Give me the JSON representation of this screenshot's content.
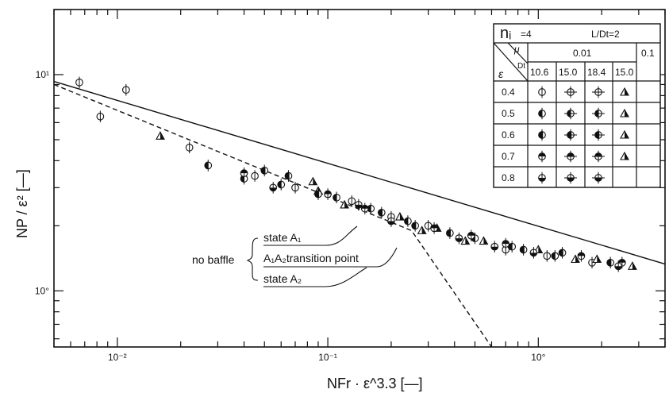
{
  "chart_data": {
    "type": "scatter",
    "title": "",
    "xlabel": "NFr · ε^3.3   [—]",
    "ylabel": "NP / ε²   [—]",
    "xscale": "log",
    "yscale": "log",
    "xlim": [
      0.005,
      4.0
    ],
    "ylim": [
      0.55,
      20
    ],
    "x_ticklabels": [
      "10⁻²",
      "10⁻¹",
      "10°"
    ],
    "y_ticklabels": [
      "10¹",
      "10°"
    ],
    "grid": false,
    "legend": {
      "position": "top-right",
      "n_label": "nᵢ",
      "n_value": "=4",
      "ldt": "L/Dt=2",
      "mu_symbol": "μ",
      "dt_symbol": "Dt",
      "eps_symbol": "ε",
      "mu_groups": [
        "0.01",
        "0.1"
      ],
      "dt_values": [
        "10.6",
        "15.0",
        "18.4",
        "15.0"
      ],
      "rows": [
        "0.4",
        "0.5",
        "0.6",
        "0.7",
        "0.8"
      ]
    },
    "annotations": {
      "no_baffle": "no baffle",
      "state_a1": "state A₁",
      "transition": "A₁A₂transition point",
      "state_a2": "state A₂"
    },
    "series": [
      {
        "eps": "0.4",
        "points": [
          [
            0.0066,
            9.2
          ],
          [
            0.0083,
            6.4
          ],
          [
            0.011,
            8.5
          ],
          [
            0.016,
            5.2
          ],
          [
            0.022,
            4.6
          ],
          [
            0.045,
            3.4
          ],
          [
            0.07,
            3.0
          ],
          [
            0.09,
            2.9
          ],
          [
            0.13,
            2.6
          ],
          [
            0.2,
            2.2
          ],
          [
            0.3,
            2.0
          ],
          [
            0.45,
            1.7
          ],
          [
            0.7,
            1.55
          ],
          [
            1.1,
            1.45
          ],
          [
            1.8,
            1.35
          ],
          [
            2.8,
            1.3
          ]
        ]
      },
      {
        "eps": "0.5",
        "points": [
          [
            0.027,
            3.8
          ],
          [
            0.04,
            3.3
          ],
          [
            0.06,
            3.1
          ],
          [
            0.085,
            3.2
          ],
          [
            0.11,
            2.7
          ],
          [
            0.16,
            2.4
          ],
          [
            0.24,
            2.1
          ],
          [
            0.33,
            1.95
          ],
          [
            0.5,
            1.75
          ],
          [
            0.75,
            1.6
          ],
          [
            1.2,
            1.45
          ],
          [
            1.9,
            1.4
          ]
        ]
      },
      {
        "eps": "0.6",
        "points": [
          [
            0.05,
            3.6
          ],
          [
            0.065,
            3.4
          ],
          [
            0.09,
            2.8
          ],
          [
            0.12,
            2.5
          ],
          [
            0.18,
            2.3
          ],
          [
            0.26,
            2.0
          ],
          [
            0.38,
            1.85
          ],
          [
            0.55,
            1.7
          ],
          [
            0.85,
            1.55
          ],
          [
            1.3,
            1.5
          ],
          [
            2.2,
            1.35
          ]
        ]
      },
      {
        "eps": "0.7",
        "points": [
          [
            0.04,
            3.5
          ],
          [
            0.1,
            2.8
          ],
          [
            0.15,
            2.4
          ],
          [
            0.22,
            2.2
          ],
          [
            0.32,
            1.95
          ],
          [
            0.48,
            1.8
          ],
          [
            0.7,
            1.65
          ],
          [
            1.0,
            1.55
          ],
          [
            1.6,
            1.45
          ],
          [
            2.5,
            1.35
          ]
        ]
      },
      {
        "eps": "0.8",
        "points": [
          [
            0.055,
            3.0
          ],
          [
            0.14,
            2.5
          ],
          [
            0.2,
            2.1
          ],
          [
            0.28,
            1.9
          ],
          [
            0.42,
            1.75
          ],
          [
            0.62,
            1.6
          ],
          [
            0.95,
            1.5
          ],
          [
            1.5,
            1.4
          ],
          [
            2.4,
            1.3
          ]
        ]
      }
    ],
    "lines": {
      "state_a1": [
        [
          0.005,
          9.3
        ],
        [
          4.0,
          1.33
        ]
      ],
      "state_a2_dashed": [
        [
          0.005,
          9.0
        ],
        [
          0.25,
          1.9
        ],
        [
          0.6,
          0.55
        ]
      ]
    }
  }
}
